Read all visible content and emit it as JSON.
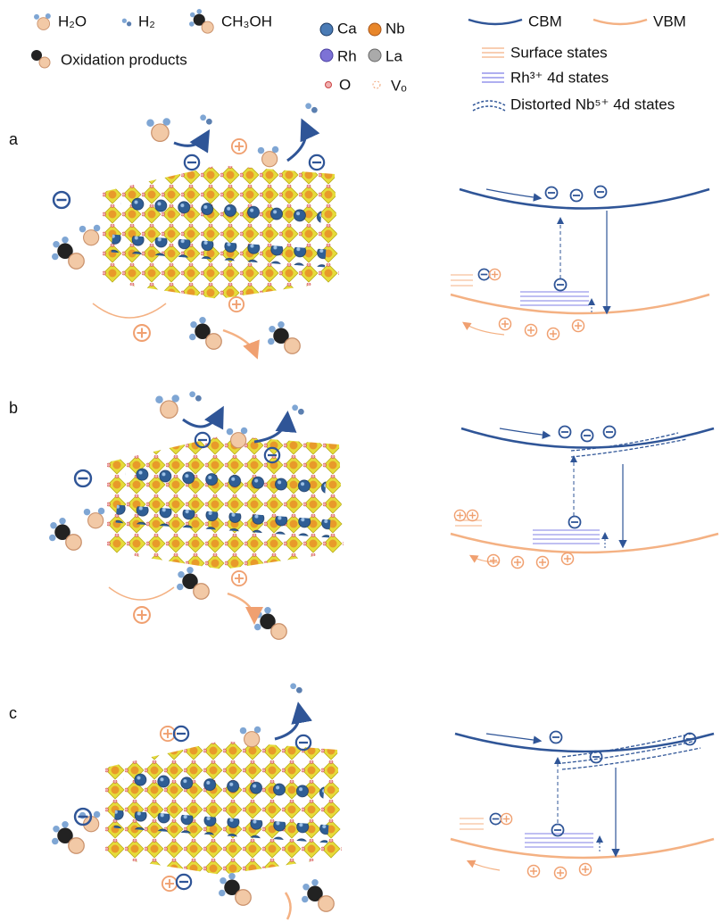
{
  "legend": {
    "molecules": [
      "H₂O",
      "H₂",
      "CH₃OH",
      "Oxidation products"
    ],
    "atoms": [
      "Ca",
      "Nb",
      "Rh",
      "La",
      "O",
      "Vₒ"
    ],
    "bands": [
      "CBM",
      "VBM",
      "Surface states",
      "Rh³⁺ 4d states",
      "Distorted Nb⁵⁺ 4d states"
    ]
  },
  "panels": [
    "a",
    "b",
    "c"
  ]
}
